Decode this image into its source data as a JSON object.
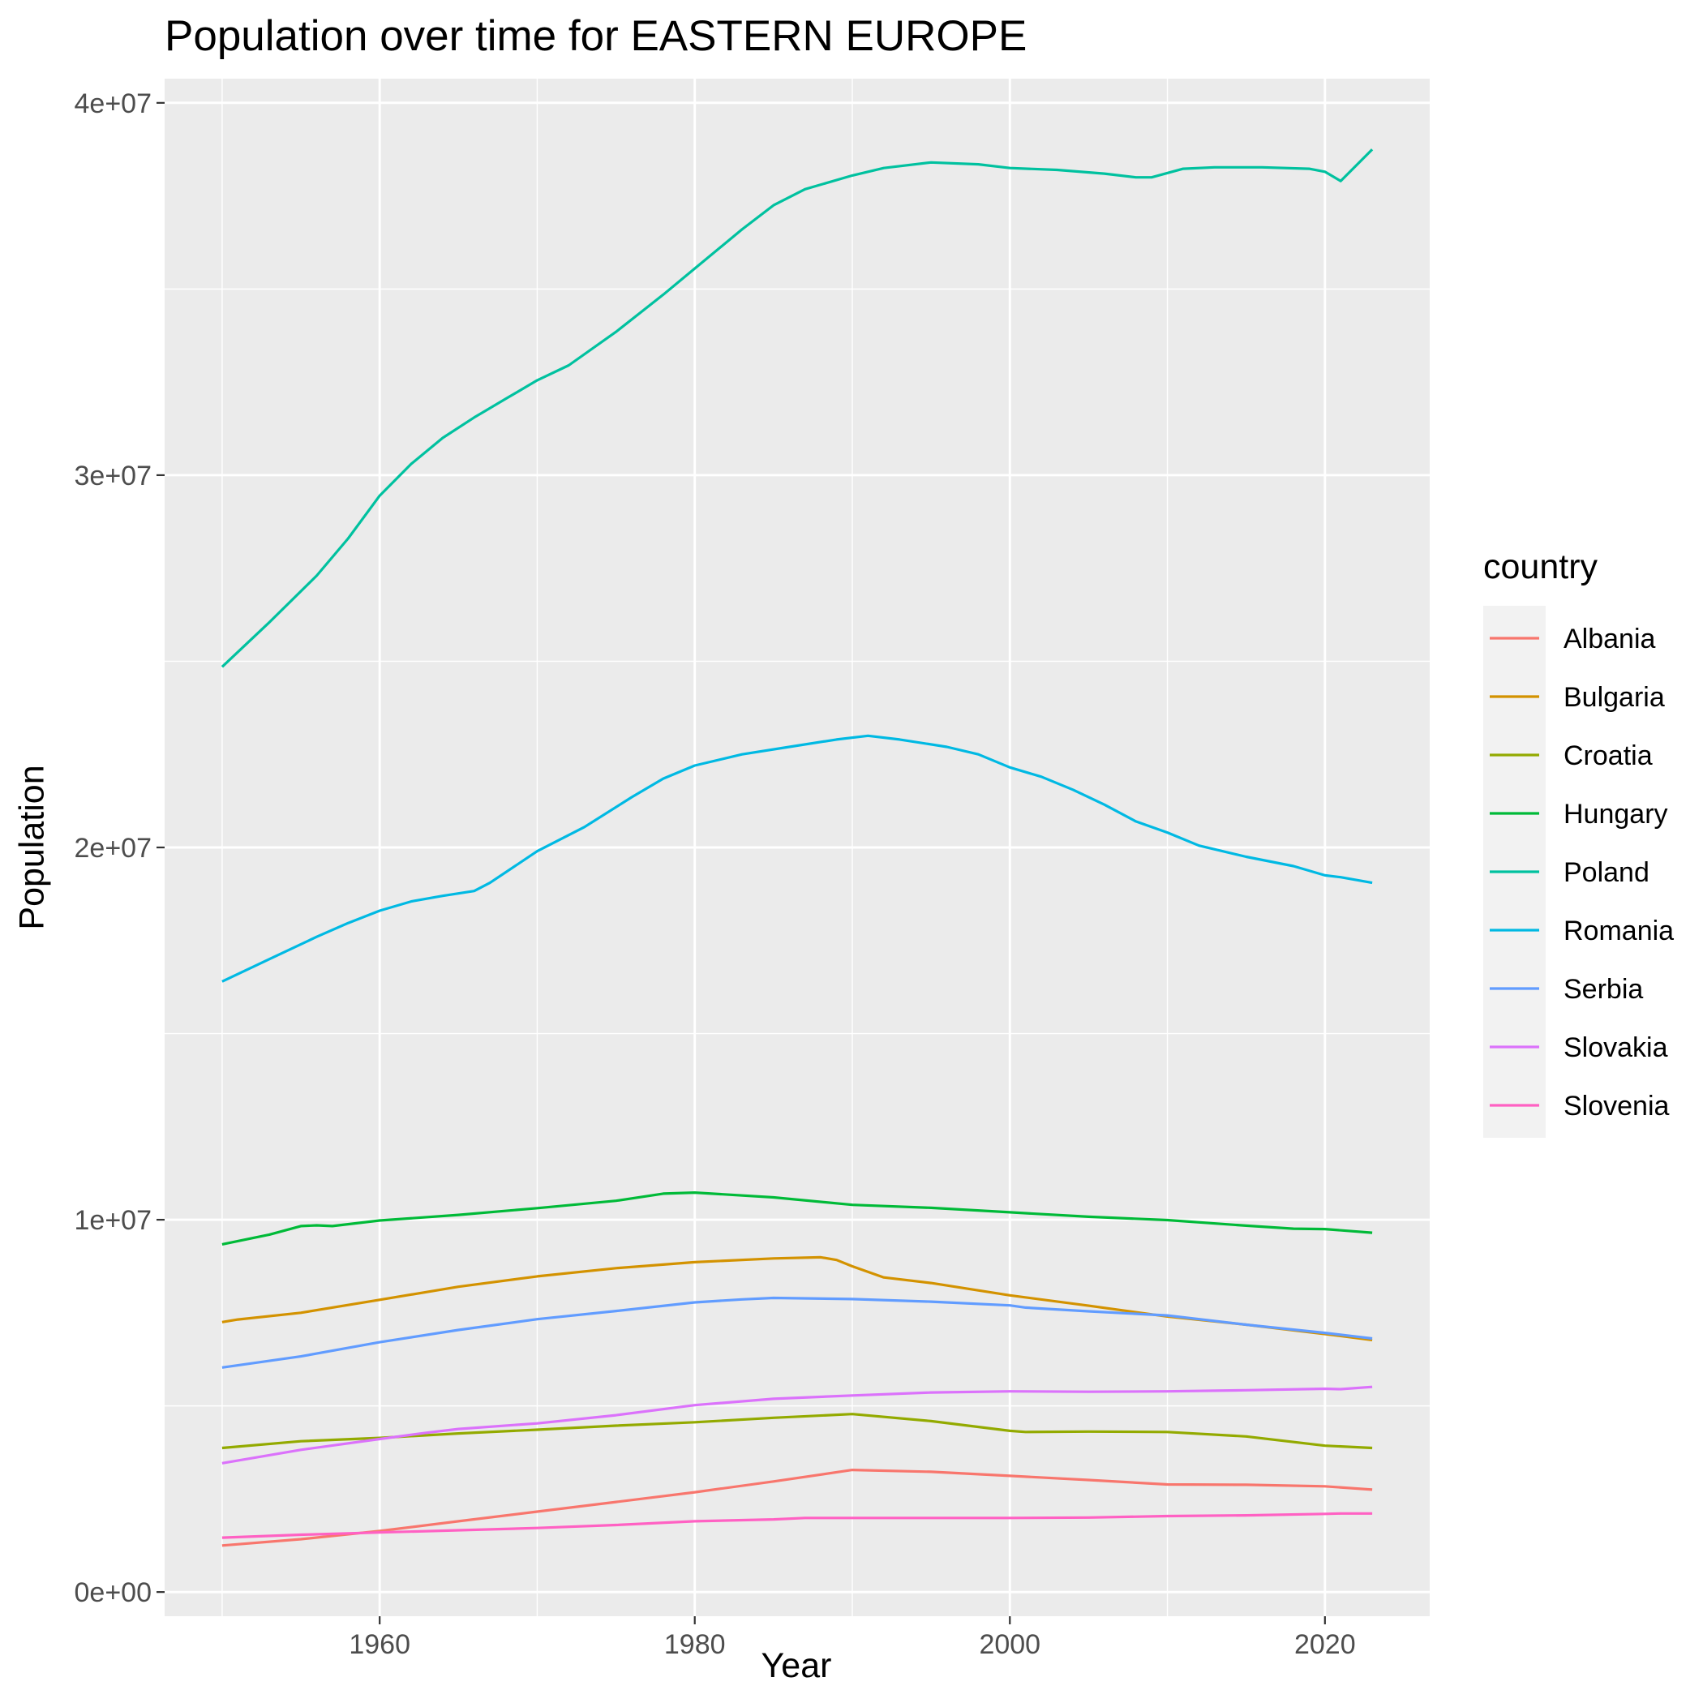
{
  "chart_data": {
    "type": "line",
    "title": "Population over time for EASTERN EUROPE",
    "xlabel": "Year",
    "ylabel": "Population",
    "xlim": [
      1946.35,
      2026.65
    ],
    "ylim": [
      -650000,
      40650000
    ],
    "x_ticks": [
      1960,
      1980,
      2000,
      2020
    ],
    "x_tick_labels": [
      "1960",
      "1980",
      "2000",
      "2020"
    ],
    "y_ticks": [
      0,
      10000000,
      20000000,
      30000000,
      40000000
    ],
    "y_tick_labels": [
      "0e+00",
      "1e+07",
      "2e+07",
      "3e+07",
      "4e+07"
    ],
    "grid": true,
    "legend": {
      "title": "country",
      "position": "right"
    },
    "series": [
      {
        "name": "Albania",
        "color": "#F8766D",
        "points": [
          [
            1950,
            1250000
          ],
          [
            1955,
            1420000
          ],
          [
            1960,
            1640000
          ],
          [
            1965,
            1900000
          ],
          [
            1970,
            2160000
          ],
          [
            1975,
            2420000
          ],
          [
            1980,
            2680000
          ],
          [
            1985,
            2970000
          ],
          [
            1990,
            3280000
          ],
          [
            1995,
            3230000
          ],
          [
            2000,
            3120000
          ],
          [
            2005,
            3010000
          ],
          [
            2010,
            2890000
          ],
          [
            2015,
            2880000
          ],
          [
            2020,
            2840000
          ],
          [
            2023,
            2750000
          ]
        ]
      },
      {
        "name": "Bulgaria",
        "color": "#D39200",
        "points": [
          [
            1950,
            7250000
          ],
          [
            1951,
            7320000
          ],
          [
            1955,
            7500000
          ],
          [
            1960,
            7850000
          ],
          [
            1965,
            8200000
          ],
          [
            1970,
            8480000
          ],
          [
            1975,
            8700000
          ],
          [
            1980,
            8860000
          ],
          [
            1985,
            8960000
          ],
          [
            1988,
            8990000
          ],
          [
            1989,
            8920000
          ],
          [
            1990,
            8750000
          ],
          [
            1992,
            8450000
          ],
          [
            1995,
            8300000
          ],
          [
            2000,
            7970000
          ],
          [
            2005,
            7690000
          ],
          [
            2010,
            7400000
          ],
          [
            2015,
            7180000
          ],
          [
            2020,
            6930000
          ],
          [
            2023,
            6770000
          ]
        ]
      },
      {
        "name": "Croatia",
        "color": "#93AA00",
        "points": [
          [
            1950,
            3870000
          ],
          [
            1955,
            4050000
          ],
          [
            1960,
            4140000
          ],
          [
            1965,
            4260000
          ],
          [
            1970,
            4360000
          ],
          [
            1975,
            4470000
          ],
          [
            1980,
            4560000
          ],
          [
            1985,
            4680000
          ],
          [
            1990,
            4780000
          ],
          [
            1995,
            4590000
          ],
          [
            2000,
            4330000
          ],
          [
            2001,
            4300000
          ],
          [
            2005,
            4310000
          ],
          [
            2010,
            4300000
          ],
          [
            2015,
            4180000
          ],
          [
            2020,
            3930000
          ],
          [
            2023,
            3870000
          ]
        ]
      },
      {
        "name": "Hungary",
        "color": "#00BA38",
        "points": [
          [
            1950,
            9340000
          ],
          [
            1953,
            9600000
          ],
          [
            1955,
            9830000
          ],
          [
            1956,
            9850000
          ],
          [
            1957,
            9830000
          ],
          [
            1960,
            9980000
          ],
          [
            1965,
            10130000
          ],
          [
            1970,
            10310000
          ],
          [
            1975,
            10510000
          ],
          [
            1978,
            10700000
          ],
          [
            1980,
            10730000
          ],
          [
            1985,
            10600000
          ],
          [
            1990,
            10400000
          ],
          [
            1995,
            10320000
          ],
          [
            2000,
            10200000
          ],
          [
            2005,
            10080000
          ],
          [
            2010,
            9990000
          ],
          [
            2015,
            9840000
          ],
          [
            2018,
            9760000
          ],
          [
            2020,
            9750000
          ],
          [
            2023,
            9650000
          ]
        ]
      },
      {
        "name": "Poland",
        "color": "#00C19F",
        "points": [
          [
            1950,
            24850000
          ],
          [
            1953,
            26050000
          ],
          [
            1956,
            27300000
          ],
          [
            1958,
            28300000
          ],
          [
            1960,
            29450000
          ],
          [
            1962,
            30300000
          ],
          [
            1964,
            31000000
          ],
          [
            1966,
            31550000
          ],
          [
            1968,
            32050000
          ],
          [
            1970,
            32550000
          ],
          [
            1972,
            32950000
          ],
          [
            1975,
            33850000
          ],
          [
            1978,
            34850000
          ],
          [
            1980,
            35550000
          ],
          [
            1983,
            36600000
          ],
          [
            1985,
            37250000
          ],
          [
            1987,
            37680000
          ],
          [
            1990,
            38050000
          ],
          [
            1992,
            38250000
          ],
          [
            1995,
            38400000
          ],
          [
            1998,
            38350000
          ],
          [
            2000,
            38250000
          ],
          [
            2003,
            38200000
          ],
          [
            2006,
            38100000
          ],
          [
            2008,
            38000000
          ],
          [
            2009,
            38000000
          ],
          [
            2011,
            38230000
          ],
          [
            2013,
            38270000
          ],
          [
            2016,
            38270000
          ],
          [
            2019,
            38230000
          ],
          [
            2020,
            38150000
          ],
          [
            2021,
            37900000
          ],
          [
            2023,
            38750000
          ]
        ]
      },
      {
        "name": "Romania",
        "color": "#00B9E3",
        "points": [
          [
            1950,
            16400000
          ],
          [
            1953,
            17000000
          ],
          [
            1956,
            17600000
          ],
          [
            1958,
            17970000
          ],
          [
            1960,
            18300000
          ],
          [
            1962,
            18550000
          ],
          [
            1964,
            18700000
          ],
          [
            1966,
            18830000
          ],
          [
            1967,
            19050000
          ],
          [
            1970,
            19900000
          ],
          [
            1973,
            20550000
          ],
          [
            1976,
            21350000
          ],
          [
            1978,
            21850000
          ],
          [
            1980,
            22200000
          ],
          [
            1983,
            22500000
          ],
          [
            1986,
            22700000
          ],
          [
            1989,
            22900000
          ],
          [
            1991,
            23000000
          ],
          [
            1993,
            22900000
          ],
          [
            1996,
            22700000
          ],
          [
            1998,
            22500000
          ],
          [
            2000,
            22150000
          ],
          [
            2002,
            21900000
          ],
          [
            2004,
            21550000
          ],
          [
            2006,
            21150000
          ],
          [
            2008,
            20700000
          ],
          [
            2010,
            20400000
          ],
          [
            2012,
            20050000
          ],
          [
            2015,
            19750000
          ],
          [
            2018,
            19500000
          ],
          [
            2020,
            19250000
          ],
          [
            2021,
            19200000
          ],
          [
            2023,
            19050000
          ]
        ]
      },
      {
        "name": "Serbia",
        "color": "#619CFF",
        "points": [
          [
            1950,
            6030000
          ],
          [
            1955,
            6330000
          ],
          [
            1960,
            6710000
          ],
          [
            1965,
            7040000
          ],
          [
            1970,
            7330000
          ],
          [
            1975,
            7550000
          ],
          [
            1980,
            7780000
          ],
          [
            1983,
            7860000
          ],
          [
            1985,
            7900000
          ],
          [
            1990,
            7870000
          ],
          [
            1995,
            7800000
          ],
          [
            2000,
            7700000
          ],
          [
            2001,
            7640000
          ],
          [
            2005,
            7540000
          ],
          [
            2010,
            7430000
          ],
          [
            2015,
            7180000
          ],
          [
            2020,
            6960000
          ],
          [
            2022,
            6860000
          ],
          [
            2023,
            6810000
          ]
        ]
      },
      {
        "name": "Slovakia",
        "color": "#DB72FB",
        "points": [
          [
            1950,
            3460000
          ],
          [
            1955,
            3820000
          ],
          [
            1960,
            4110000
          ],
          [
            1963,
            4280000
          ],
          [
            1965,
            4380000
          ],
          [
            1970,
            4530000
          ],
          [
            1975,
            4750000
          ],
          [
            1980,
            5020000
          ],
          [
            1985,
            5190000
          ],
          [
            1990,
            5280000
          ],
          [
            1995,
            5360000
          ],
          [
            2000,
            5390000
          ],
          [
            2005,
            5380000
          ],
          [
            2010,
            5390000
          ],
          [
            2015,
            5420000
          ],
          [
            2020,
            5460000
          ],
          [
            2021,
            5450000
          ],
          [
            2023,
            5510000
          ]
        ]
      },
      {
        "name": "Slovenia",
        "color": "#FF61C3",
        "points": [
          [
            1950,
            1460000
          ],
          [
            1955,
            1540000
          ],
          [
            1960,
            1600000
          ],
          [
            1965,
            1660000
          ],
          [
            1970,
            1720000
          ],
          [
            1975,
            1800000
          ],
          [
            1980,
            1900000
          ],
          [
            1985,
            1950000
          ],
          [
            1987,
            1990000
          ],
          [
            1990,
            1990000
          ],
          [
            1995,
            1990000
          ],
          [
            2000,
            1990000
          ],
          [
            2005,
            2000000
          ],
          [
            2010,
            2040000
          ],
          [
            2015,
            2060000
          ],
          [
            2020,
            2100000
          ],
          [
            2021,
            2110000
          ],
          [
            2023,
            2110000
          ]
        ]
      }
    ]
  }
}
